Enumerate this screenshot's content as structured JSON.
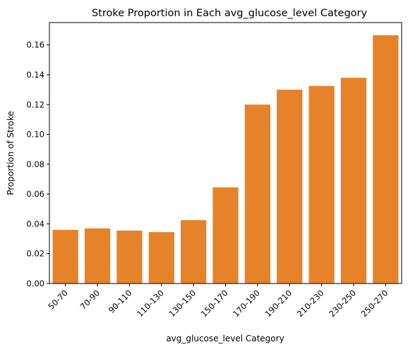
{
  "chart_data": {
    "type": "bar",
    "title": "Stroke Proportion in Each avg_glucose_level Category",
    "xlabel": "avg_glucose_level Category",
    "ylabel": "Proportion of Stroke",
    "categories": [
      "50-70",
      "70-90",
      "90-110",
      "110-130",
      "130-150",
      "150-170",
      "170-190",
      "190-210",
      "210-230",
      "230-250",
      "250-270"
    ],
    "values": [
      0.036,
      0.037,
      0.0355,
      0.0345,
      0.0425,
      0.0645,
      0.12,
      0.13,
      0.1325,
      0.138,
      0.1665
    ],
    "ylim": [
      0,
      0.175
    ],
    "yticks": [
      0.0,
      0.02,
      0.04,
      0.06,
      0.08,
      0.1,
      0.12,
      0.14,
      0.16
    ],
    "ytick_labels": [
      "0.00",
      "0.02",
      "0.04",
      "0.06",
      "0.08",
      "0.10",
      "0.12",
      "0.14",
      "0.16"
    ],
    "bar_color": "#e6832a",
    "grid": false
  }
}
